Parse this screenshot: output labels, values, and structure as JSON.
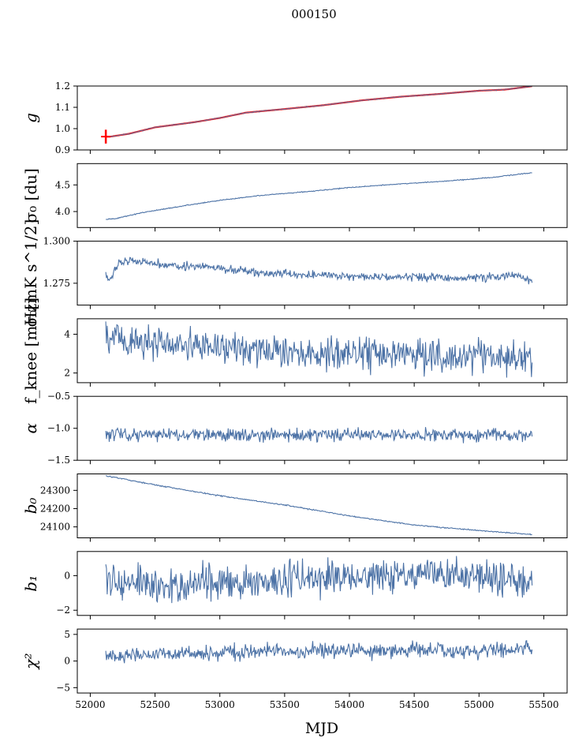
{
  "figure": {
    "suptitle": "000150",
    "xlabel": "MJD"
  },
  "colors": {
    "series": "#4c72a6",
    "fit": "#ff0000",
    "axes": "#000000"
  },
  "chart_data": {
    "type": "line",
    "xlim": [
      51900,
      55680
    ],
    "xticks": [
      52000,
      52500,
      53000,
      53500,
      54000,
      54500,
      55000,
      55500
    ],
    "x_range": [
      52120,
      55410
    ],
    "panels": [
      {
        "key": "g",
        "ylabel": "g",
        "ylim": [
          0.9,
          1.2
        ],
        "yticks": [
          0.9,
          1.0,
          1.1,
          1.2
        ],
        "ytick_labels": [
          "0.9",
          "1.0",
          "1.1",
          "1.2"
        ],
        "points": [
          [
            52120,
            0.963
          ],
          [
            52150,
            0.962
          ],
          [
            52300,
            0.976
          ],
          [
            52500,
            1.006
          ],
          [
            52800,
            1.03
          ],
          [
            53000,
            1.05
          ],
          [
            53200,
            1.075
          ],
          [
            53500,
            1.092
          ],
          [
            53800,
            1.11
          ],
          [
            54100,
            1.133
          ],
          [
            54400,
            1.15
          ],
          [
            54700,
            1.163
          ],
          [
            55000,
            1.178
          ],
          [
            55200,
            1.183
          ],
          [
            55420,
            1.2
          ],
          [
            55550,
            1.201
          ]
        ],
        "noise": 0.001,
        "fit": true,
        "error_bars": [
          {
            "x": 52120,
            "ylow": 0.93,
            "yhigh": 0.995
          }
        ]
      },
      {
        "key": "sigma0_du",
        "ylabel": "σ₀ [du]",
        "ylim": [
          3.7,
          4.9
        ],
        "yticks": [
          4.0,
          4.5
        ],
        "ytick_labels": [
          "4.0",
          "4.5"
        ],
        "points": [
          [
            52120,
            3.85
          ],
          [
            52200,
            3.87
          ],
          [
            52400,
            3.98
          ],
          [
            52700,
            4.1
          ],
          [
            53000,
            4.21
          ],
          [
            53300,
            4.3
          ],
          [
            53700,
            4.38
          ],
          [
            54000,
            4.45
          ],
          [
            54400,
            4.52
          ],
          [
            54800,
            4.58
          ],
          [
            55100,
            4.64
          ],
          [
            55410,
            4.73
          ]
        ],
        "noise": 0.004
      },
      {
        "key": "sigma0_mK",
        "ylabel": "σ₀[mK s^1/2]",
        "ylim": [
          1.262,
          1.3
        ],
        "yticks": [
          1.275,
          1.3
        ],
        "ytick_labels": [
          "1.275",
          "1.300"
        ],
        "points": [
          [
            52120,
            1.279
          ],
          [
            52150,
            1.276
          ],
          [
            52200,
            1.286
          ],
          [
            52300,
            1.289
          ],
          [
            52600,
            1.286
          ],
          [
            53000,
            1.284
          ],
          [
            53300,
            1.281
          ],
          [
            53700,
            1.28
          ],
          [
            54000,
            1.279
          ],
          [
            54400,
            1.279
          ],
          [
            54800,
            1.278
          ],
          [
            55200,
            1.279
          ],
          [
            55300,
            1.28
          ],
          [
            55410,
            1.276
          ]
        ],
        "noise": 0.0012
      },
      {
        "key": "fknee",
        "ylabel": "f_knee [mHz]",
        "ylim": [
          1.5,
          4.8
        ],
        "yticks": [
          2,
          4
        ],
        "ytick_labels": [
          "2",
          "4"
        ],
        "points": [
          [
            52120,
            3.9
          ],
          [
            52400,
            3.6
          ],
          [
            53000,
            3.3
          ],
          [
            53600,
            3.1
          ],
          [
            54200,
            3.0
          ],
          [
            54800,
            2.9
          ],
          [
            55410,
            2.8
          ]
        ],
        "noise": 0.45
      },
      {
        "key": "alpha",
        "ylabel": "α",
        "ylim": [
          -1.5,
          -0.5
        ],
        "yticks": [
          -1.5,
          -1.0,
          -0.5
        ],
        "ytick_labels": [
          "−1.5",
          "−1.0",
          "−0.5"
        ],
        "points": [
          [
            52120,
            -1.1
          ],
          [
            55410,
            -1.1
          ]
        ],
        "noise": 0.05
      },
      {
        "key": "b0",
        "ylabel": "b₀",
        "ylim": [
          24040,
          24390
        ],
        "yticks": [
          24100,
          24200,
          24300
        ],
        "ytick_labels": [
          "24100",
          "24200",
          "24300"
        ],
        "points": [
          [
            52120,
            24380
          ],
          [
            52200,
            24370
          ],
          [
            52500,
            24330
          ],
          [
            53000,
            24270
          ],
          [
            53500,
            24220
          ],
          [
            54000,
            24160
          ],
          [
            54500,
            24110
          ],
          [
            55000,
            24080
          ],
          [
            55410,
            24058
          ]
        ],
        "noise": 1.5
      },
      {
        "key": "b1",
        "ylabel": "b₁",
        "ylim": [
          -2.3,
          1.4
        ],
        "yticks": [
          -2,
          0
        ],
        "ytick_labels": [
          "−2",
          "0"
        ],
        "points": [
          [
            52120,
            -0.4
          ],
          [
            52500,
            -0.6
          ],
          [
            53000,
            -0.4
          ],
          [
            53500,
            -0.3
          ],
          [
            54000,
            -0.1
          ],
          [
            54500,
            0.0
          ],
          [
            55000,
            0.0
          ],
          [
            55410,
            -0.3
          ]
        ],
        "noise": 0.5
      },
      {
        "key": "chi2",
        "ylabel": "χ²",
        "ylim": [
          -6,
          6
        ],
        "yticks": [
          -5,
          0,
          5
        ],
        "ytick_labels": [
          "−5",
          "0",
          "5"
        ],
        "points": [
          [
            52120,
            0.8
          ],
          [
            52400,
            1.2
          ],
          [
            53000,
            1.6
          ],
          [
            53500,
            1.8
          ],
          [
            54000,
            2.0
          ],
          [
            54500,
            1.9
          ],
          [
            55000,
            1.9
          ],
          [
            55410,
            2.5
          ]
        ],
        "noise": 0.7
      }
    ]
  }
}
